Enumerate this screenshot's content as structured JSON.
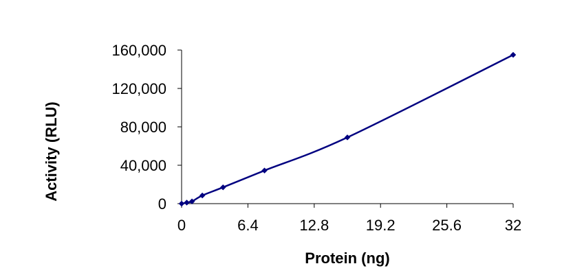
{
  "chart_data": {
    "type": "line",
    "title": "",
    "xlabel": "Protein (ng)",
    "ylabel": "Activity (RLU)",
    "xlim": [
      0,
      32
    ],
    "ylim": [
      0,
      160000
    ],
    "x_ticks": [
      "0",
      "6.4",
      "12.8",
      "19.2",
      "25.6",
      "32"
    ],
    "x_tick_values": [
      0,
      6.4,
      12.8,
      19.2,
      25.6,
      32
    ],
    "y_ticks": [
      "0",
      "40,000",
      "80,000",
      "120,000",
      "160,000"
    ],
    "y_tick_values": [
      0,
      40000,
      80000,
      120000,
      160000
    ],
    "grid": false,
    "legend": false,
    "series": [
      {
        "color": "#000080",
        "marker": "diamond",
        "x": [
          0,
          0.5,
          1,
          2,
          4,
          8,
          16,
          32
        ],
        "y": [
          0,
          1100,
          2300,
          8500,
          17000,
          34500,
          69000,
          155000
        ]
      }
    ]
  }
}
